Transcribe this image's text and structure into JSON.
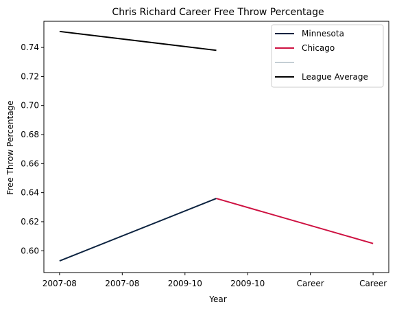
{
  "chart_data": {
    "type": "line",
    "title": "Chris Richard  Career Free Throw Percentage",
    "xlabel": "Year",
    "ylabel": "Free Throw Percentage",
    "x_tick_labels": [
      "2007-08",
      "2007-08",
      "2009-10",
      "2009-10",
      "Career",
      "Career"
    ],
    "y_ticks": [
      "0.60",
      "0.62",
      "0.64",
      "0.66",
      "0.68",
      "0.70",
      "0.72",
      "0.74"
    ],
    "ylim": [
      0.585,
      0.758
    ],
    "grid": false,
    "legend_position": "top-right",
    "series": [
      {
        "name": "Minnesota",
        "color": "#0C2340",
        "points": [
          {
            "x": 0,
            "y": 0.593
          },
          {
            "x": 2.5,
            "y": 0.636
          }
        ]
      },
      {
        "name": "Chicago",
        "color": "#CE1141",
        "points": [
          {
            "x": 2.5,
            "y": 0.636
          },
          {
            "x": 5,
            "y": 0.605
          }
        ]
      },
      {
        "name": "",
        "color": "#C4CED4",
        "points": []
      },
      {
        "name": "League Average",
        "color": "#000000",
        "points": [
          {
            "x": 0,
            "y": 0.751
          },
          {
            "x": 2.5,
            "y": 0.738
          }
        ]
      }
    ]
  }
}
